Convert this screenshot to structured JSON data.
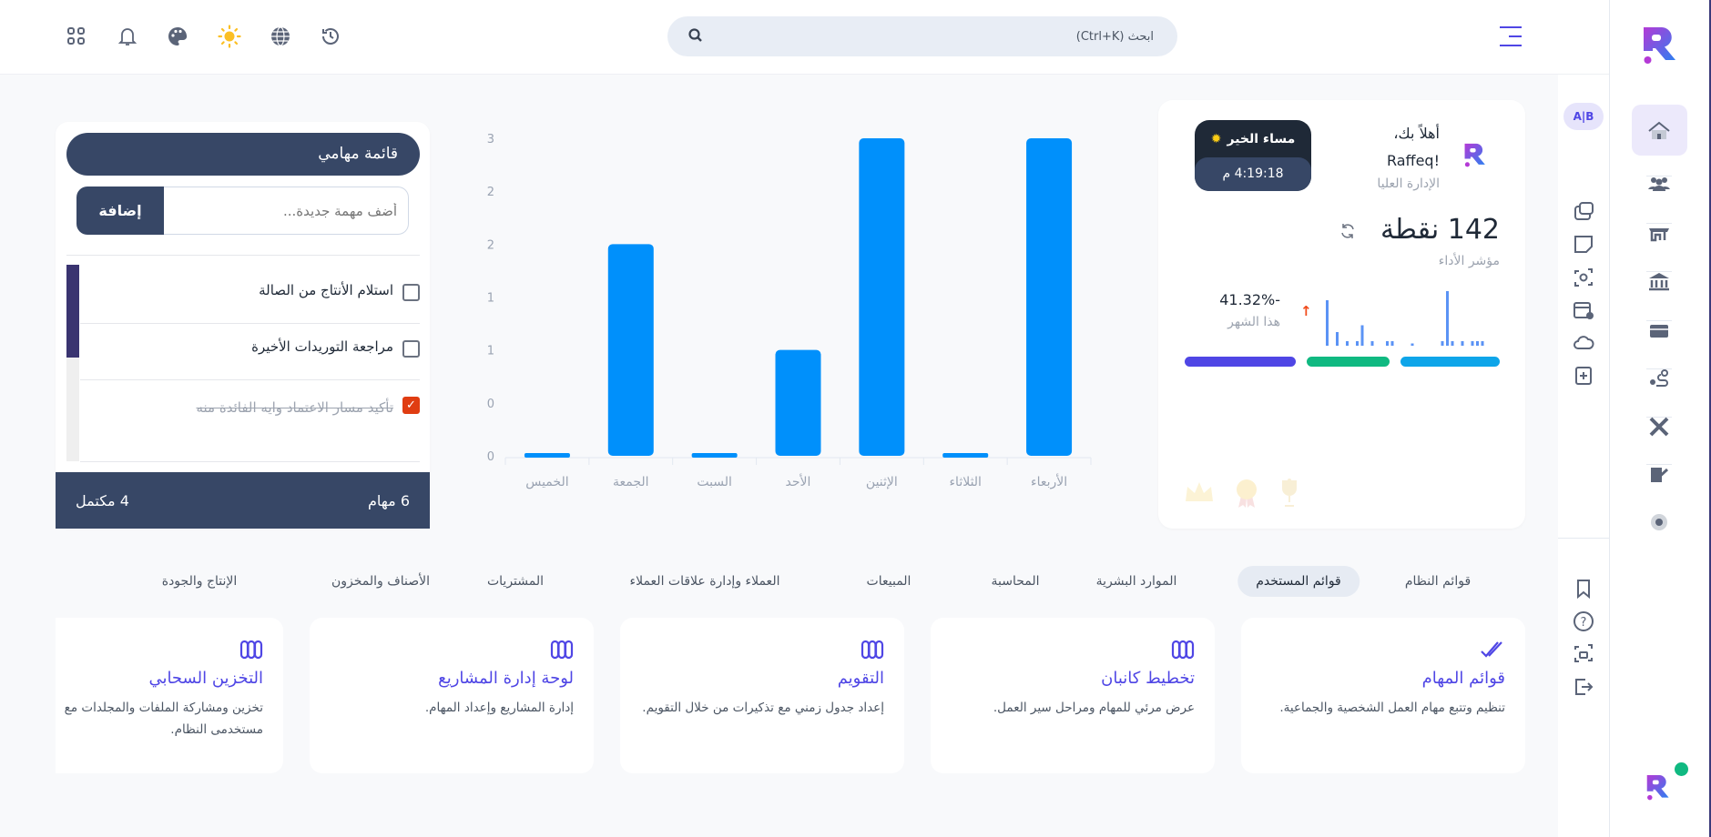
{
  "header": {
    "search_placeholder": "ابحث (Ctrl+K)",
    "icons": [
      "apps-icon",
      "bell-icon",
      "palette-icon",
      "sun-icon",
      "globe-icon",
      "history-icon"
    ]
  },
  "profile": {
    "greeting": "أهلاً بك،",
    "name": "Raffeq!",
    "role": "الإدارة العليا",
    "badge_title": "مساء الخير",
    "time": "4:19:18 م",
    "points": "142 نقطة",
    "points_label": "مؤشر الأداء",
    "change": "41.32%-",
    "change_label": "هذا الشهر",
    "change_color": "#f04a1a",
    "mini_bars": [
      1,
      0,
      0.3,
      0,
      0.1,
      0,
      0.1,
      0.45,
      0,
      0.1,
      0,
      0,
      0.1,
      0.1,
      0,
      0,
      0,
      0.05,
      0,
      0,
      0,
      0,
      0,
      0.1,
      1.2,
      0.1,
      0,
      0.1,
      0,
      0.1,
      0.1,
      0.1
    ],
    "segments": [
      {
        "color": "#4f46e5",
        "share": 0.38
      },
      {
        "color": "#10b981",
        "share": 0.28
      },
      {
        "color": "#0ea5e9",
        "share": 0.34
      }
    ]
  },
  "chart_data": {
    "type": "bar",
    "categories": [
      "الخميس",
      "الجمعة",
      "السبت",
      "الأحد",
      "الإثنين",
      "الثلاثاء",
      "الأربعاء"
    ],
    "values": [
      0,
      2,
      0,
      1,
      3,
      0,
      3
    ],
    "ylim": [
      0,
      3
    ],
    "yticks": [
      0,
      0.5,
      1,
      1.5,
      2,
      2.5,
      3
    ],
    "ytick_labels": [
      "0",
      "0",
      "1",
      "1",
      "2",
      "2",
      "3"
    ],
    "color": "#0090fb",
    "grid": false,
    "title": "",
    "xlabel": "",
    "ylabel": ""
  },
  "tasks": {
    "title": "قائمة مهامي",
    "input_placeholder": "أضف مهمة جديدة...",
    "add_label": "إضافة",
    "items": [
      {
        "label": "استلام الأنتاج من الصالة",
        "done": false
      },
      {
        "label": "مراجعة التوريدات الأخيرة",
        "done": false
      },
      {
        "label": "تأكيد مسار الاعتماد وايه الفائدة منه",
        "done": true
      }
    ],
    "total": "6 مهام",
    "completed": "4 مكتمل"
  },
  "tabs": [
    "قوائم النظام",
    "قوائم المستخدم",
    "الموارد البشرية",
    "المحاسبة",
    "المبيعات",
    "العملاء وإدارة علاقات العملاء",
    "المشتريات",
    "الأصناف والمخزون",
    "الإنتاج والجودة"
  ],
  "active_tab": "قوائم المستخدم",
  "features": [
    {
      "title": "قوائم المهام",
      "desc": "تنظيم وتتبع مهام العمل الشخصية والجماعية.",
      "icon": "double-check-icon"
    },
    {
      "title": "تخطيط كانبان",
      "desc": "عرض مرئي للمهام ومراحل سير العمل.",
      "icon": "kanban-icon"
    },
    {
      "title": "التقويم",
      "desc": "إعداد جدول زمني مع تذكيرات من خلال التقويم.",
      "icon": "kanban-icon"
    },
    {
      "title": "لوحة إدارة المشاريع",
      "desc": "إدارة المشاريع وإعداد المهام.",
      "icon": "kanban-icon"
    },
    {
      "title": "التخزين السحابي",
      "desc": "تخزين ومشاركة الملفات والمجلدات مع مستخدمى النظام.",
      "icon": "kanban-icon"
    }
  ],
  "sidebar": {
    "lang_toggle": "A|B",
    "accent": "#4f46e5"
  }
}
